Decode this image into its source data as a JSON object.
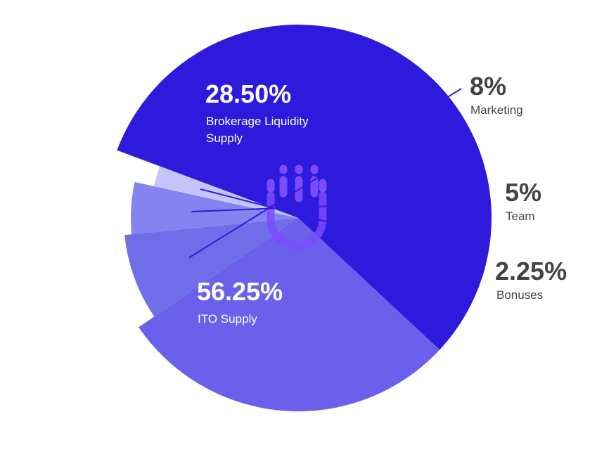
{
  "chart_data": {
    "type": "pie",
    "slices": [
      {
        "label": "ITO Supply",
        "value": 56.25,
        "display": "56.25%",
        "color": "#2e1adc"
      },
      {
        "label": "Brokerage Liquidity Supply",
        "value": 28.5,
        "display": "28.50%",
        "color": "#6a60ec"
      },
      {
        "label": "Marketing",
        "value": 8,
        "display": "8%",
        "color": "#6f6ee8"
      },
      {
        "label": "Team",
        "value": 5,
        "display": "5%",
        "color": "#8483f0"
      },
      {
        "label": "Bonuses",
        "value": 2.25,
        "display": "2.25%",
        "color": "#c4c3fb"
      }
    ],
    "leader_line_color": "#2e1adc",
    "logo_color": "#7b4bff"
  }
}
